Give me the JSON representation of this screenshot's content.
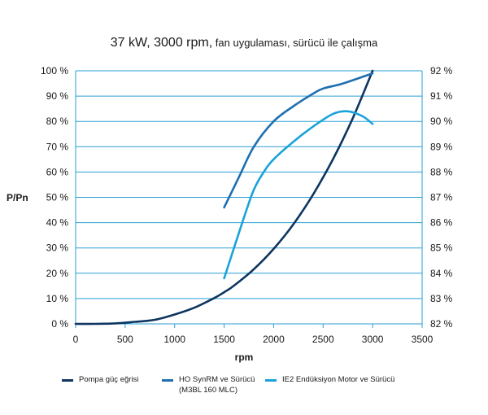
{
  "chart_data": {
    "type": "line",
    "title_main": "37 kW,  3000 rpm,",
    "title_sub": "fan uygulaması, sürücü ile çalışma",
    "xlabel": "rpm",
    "ylabel_left": "P/Pn",
    "xlim": [
      0,
      3500
    ],
    "x_ticks": [
      0,
      500,
      1000,
      1500,
      2000,
      2500,
      3000,
      3500
    ],
    "x_tick_labels": [
      "0",
      "500",
      "1000",
      "1500",
      "2000",
      "2500",
      "3000",
      "3500"
    ],
    "ylim_left": [
      0,
      100
    ],
    "y_left_ticks": [
      0,
      10,
      20,
      30,
      40,
      50,
      60,
      70,
      80,
      90,
      100
    ],
    "y_left_tick_labels": [
      "0 %",
      "10 %",
      "20 %",
      "30 %",
      "40 %",
      "50 %",
      "60 %",
      "70 %",
      "80 %",
      "90 %",
      "100 %"
    ],
    "ylim_right": [
      82,
      92
    ],
    "y_right_ticks": [
      82,
      83,
      84,
      85,
      86,
      87,
      88,
      89,
      90,
      91,
      92
    ],
    "y_right_tick_labels": [
      "82 %",
      "83 %",
      "84 %",
      "85 %",
      "86 %",
      "87 %",
      "88 %",
      "89 %",
      "90 %",
      "91 %",
      "92 %"
    ],
    "grid": "horizontal",
    "legend_position": "bottom",
    "series": [
      {
        "name": "Pompa güç eğrisi",
        "axis": "left",
        "color": "#0d3560",
        "points": [
          [
            0,
            0
          ],
          [
            200,
            0
          ],
          [
            400,
            0.2
          ],
          [
            600,
            0.8
          ],
          [
            800,
            1.6
          ],
          [
            1000,
            3.7
          ],
          [
            1200,
            6.4
          ],
          [
            1400,
            10.2
          ],
          [
            1500,
            12.5
          ],
          [
            1600,
            15.1
          ],
          [
            1800,
            21.6
          ],
          [
            2000,
            29.6
          ],
          [
            2200,
            39.4
          ],
          [
            2400,
            51.2
          ],
          [
            2600,
            65.1
          ],
          [
            2800,
            81.3
          ],
          [
            3000,
            100
          ]
        ]
      },
      {
        "name": "HO SynRM ve Sürücü",
        "name_line2": "(M3BL 160 MLC)",
        "axis": "right",
        "color": "#1f6fb0",
        "points": [
          [
            1500,
            86.6
          ],
          [
            1650,
            87.8
          ],
          [
            1800,
            89.0
          ],
          [
            2000,
            90.0
          ],
          [
            2200,
            90.6
          ],
          [
            2400,
            91.1
          ],
          [
            2500,
            91.3
          ],
          [
            2700,
            91.5
          ],
          [
            3000,
            91.9
          ]
        ]
      },
      {
        "name": "IE2 Endüksiyon Motor ve Sürücü",
        "axis": "right",
        "color": "#1aa3d9",
        "points": [
          [
            1500,
            83.8
          ],
          [
            1600,
            85.0
          ],
          [
            1700,
            86.2
          ],
          [
            1800,
            87.3
          ],
          [
            1900,
            88.0
          ],
          [
            2000,
            88.5
          ],
          [
            2200,
            89.2
          ],
          [
            2400,
            89.8
          ],
          [
            2600,
            90.3
          ],
          [
            2750,
            90.4
          ],
          [
            2900,
            90.2
          ],
          [
            3000,
            89.9
          ]
        ]
      }
    ]
  }
}
